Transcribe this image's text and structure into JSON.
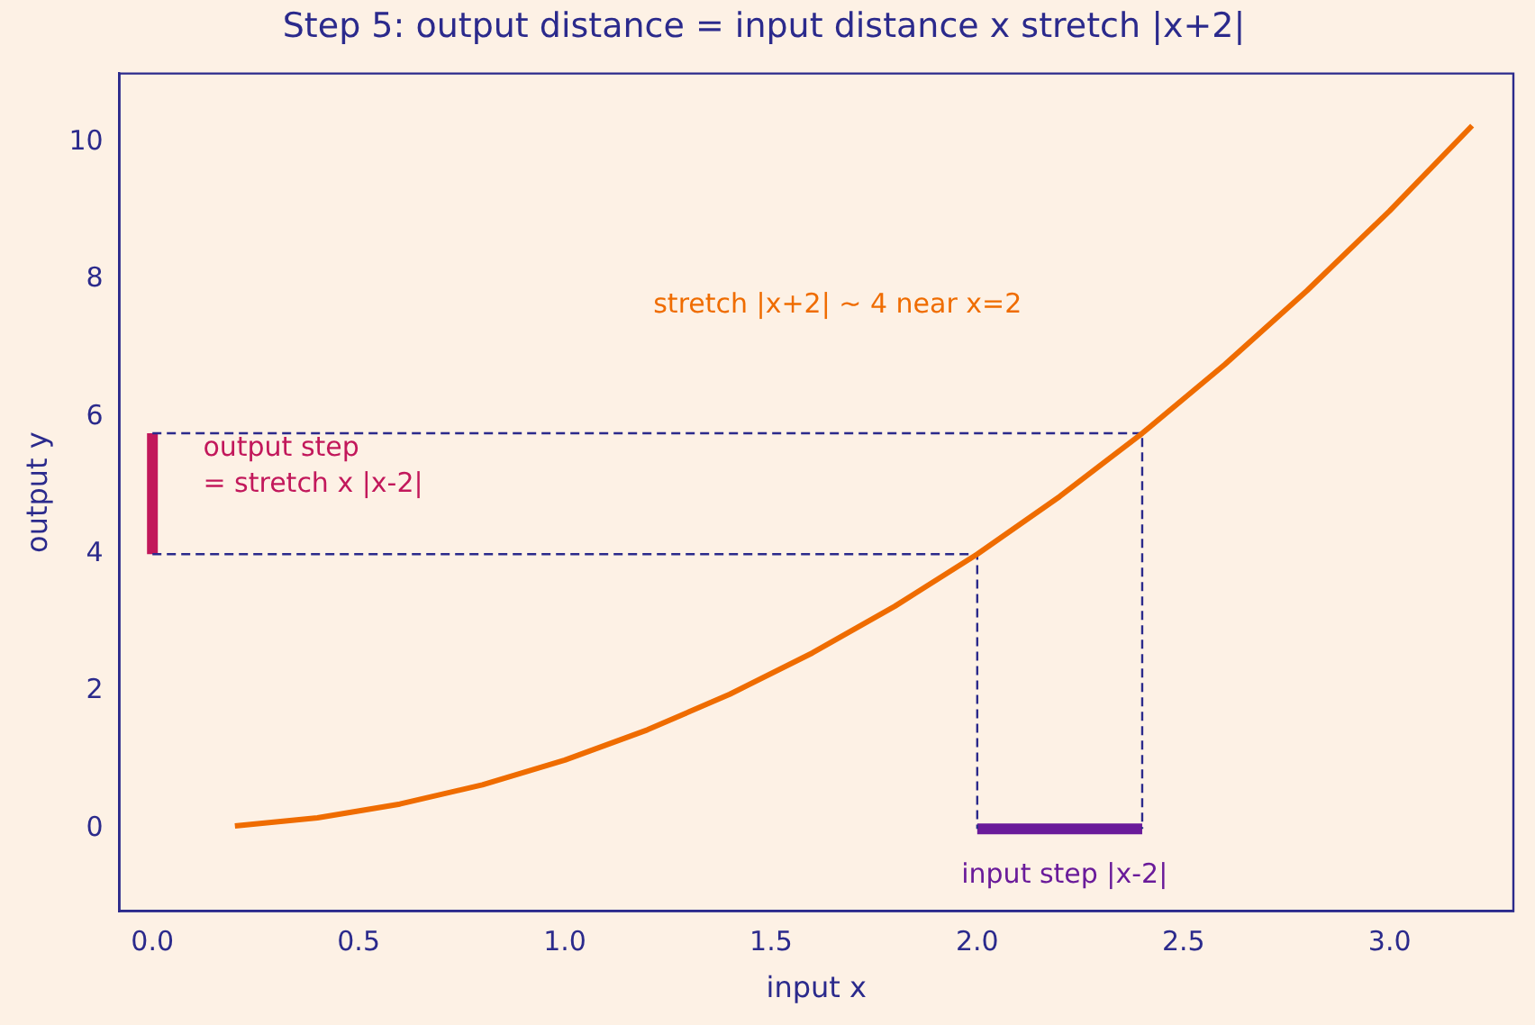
{
  "chart_data": {
    "type": "line",
    "title": "Step 5: output distance = input distance x stretch |x+2|",
    "xlabel": "input x",
    "ylabel": "output y",
    "series": [
      {
        "color": "#ef6c00",
        "x": [
          0.2,
          0.4,
          0.6,
          0.8,
          1.0,
          1.2,
          1.4,
          1.6,
          1.8,
          2.0,
          2.2,
          2.4,
          2.6,
          2.8,
          3.0,
          3.2
        ],
        "values": [
          0.04,
          0.16,
          0.36,
          0.64,
          1.0,
          1.44,
          1.96,
          2.56,
          3.24,
          4.0,
          4.84,
          5.76,
          6.76,
          7.84,
          9.0,
          10.24
        ]
      },
      {
        "color": "#2b2a8c",
        "line_style": "dashed",
        "x": [
          0,
          2.4,
          2.4
        ],
        "values": [
          5.76,
          5.76,
          0
        ]
      },
      {
        "color": "#2b2a8c",
        "line_style": "dashed",
        "x": [
          0,
          2,
          2
        ],
        "values": [
          4,
          4,
          0
        ]
      },
      {
        "color": "#6a1b9a",
        "x": [
          2,
          2.4
        ],
        "values": [
          0,
          0
        ]
      },
      {
        "color": "#c2185b",
        "x": [
          0,
          0
        ],
        "values": [
          4,
          5.76
        ]
      }
    ],
    "xlim": [
      -0.08,
      3.3
    ],
    "xticks": [
      {
        "value": 0,
        "label": "0.0"
      },
      {
        "value": 0.5,
        "label": "0.5"
      },
      {
        "value": 1,
        "label": "1.0"
      },
      {
        "value": 1.5,
        "label": "1.5"
      },
      {
        "value": 2,
        "label": "2.0"
      },
      {
        "value": 2.5,
        "label": "2.5"
      },
      {
        "value": 3,
        "label": "3.0"
      }
    ],
    "ylim": [
      -1.2,
      11
    ],
    "yticks": [
      0,
      2,
      4,
      6,
      8,
      10
    ],
    "marker": "none",
    "grid": false,
    "legend": false,
    "annotations": [
      "stretch |x+2| ~ 4 near x=2",
      "output step\n= stretch x |x-2|",
      "input step |x-2|"
    ]
  }
}
